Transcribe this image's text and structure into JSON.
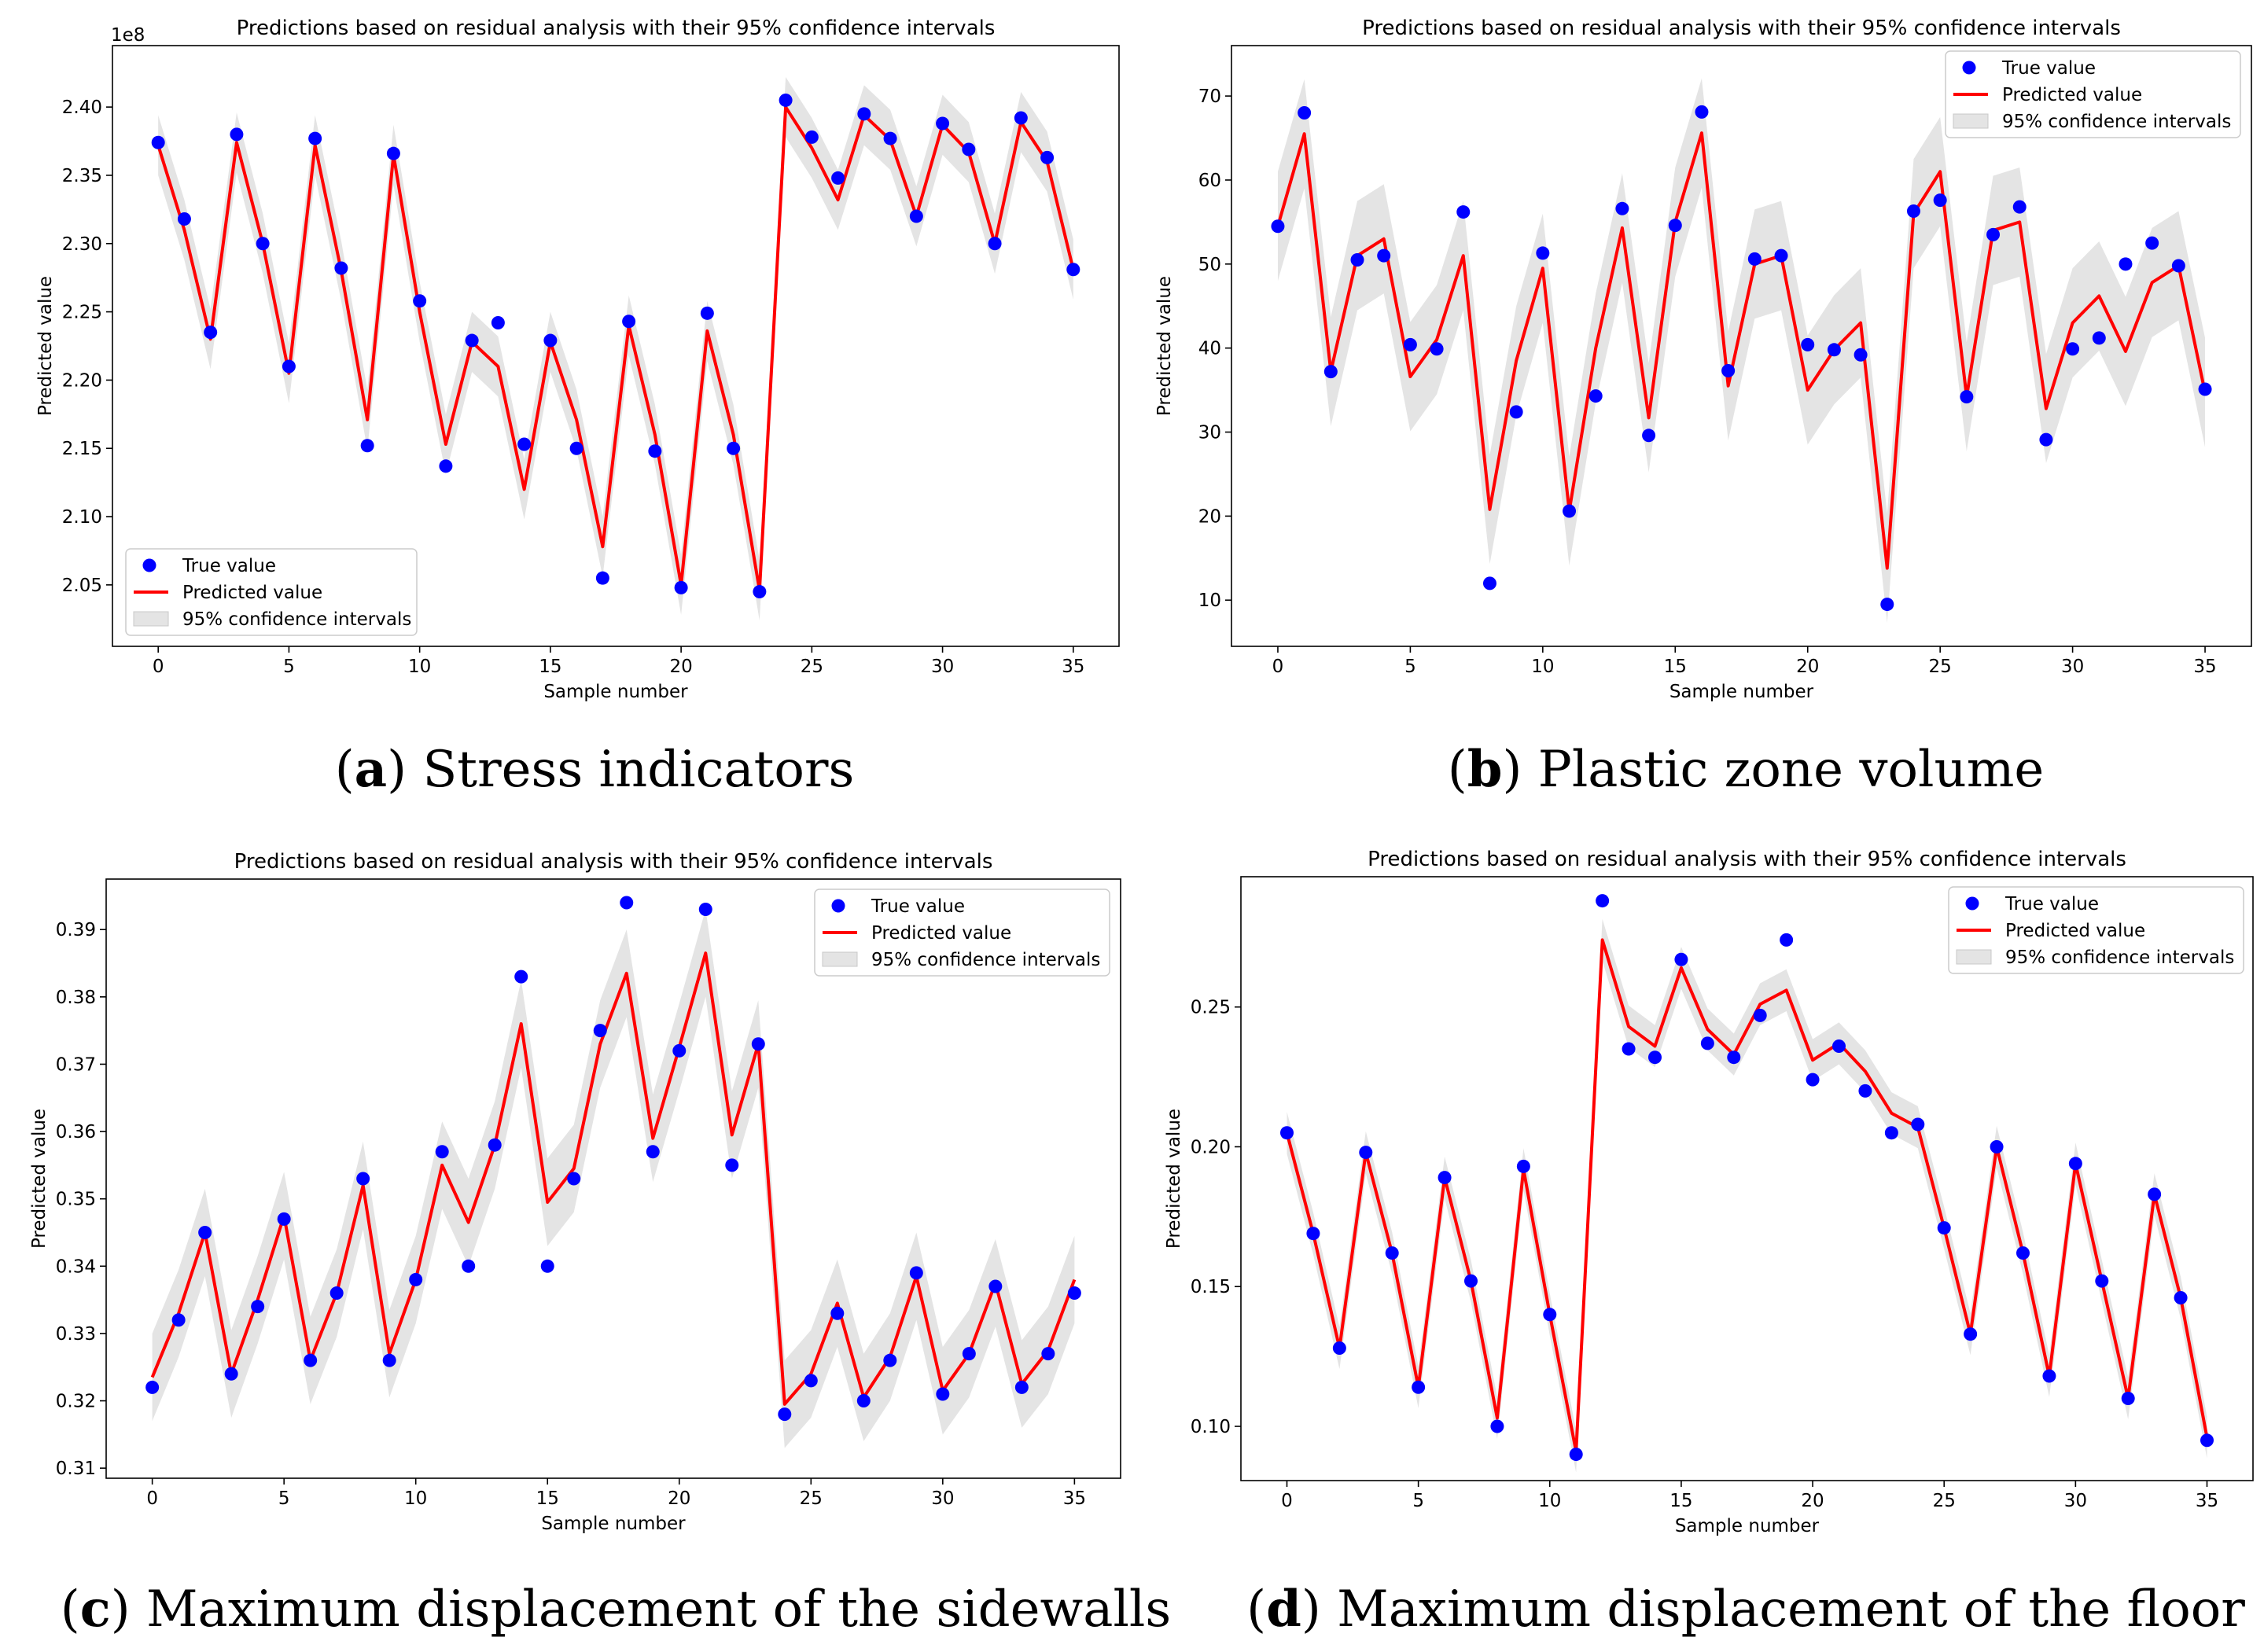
{
  "chart_data": [
    {
      "type": "line",
      "title": "Predictions based on residual analysis with their 95% confidence intervals",
      "xlabel": "Sample number",
      "ylabel": "Predicted value",
      "offset_text": "1e8",
      "caption_letter": "a",
      "caption_text": "Stress indicators",
      "legend": {
        "position": "lower-left",
        "true_label": "True value",
        "pred_label": "Predicted value",
        "ci_label": "95% confidence intervals"
      },
      "xlim": [
        -1.75,
        36.75
      ],
      "ylim": [
        2.005,
        2.445
      ],
      "xticks": [
        0,
        5,
        10,
        15,
        20,
        25,
        30,
        35
      ],
      "xtick_labels": [
        "0",
        "5",
        "10",
        "15",
        "20",
        "25",
        "30",
        "35"
      ],
      "yticks": [
        2.05,
        2.1,
        2.15,
        2.2,
        2.25,
        2.3,
        2.35,
        2.4
      ],
      "ytick_labels": [
        "2.05",
        "2.10",
        "2.15",
        "2.20",
        "2.25",
        "2.30",
        "2.35",
        "2.40"
      ],
      "true_values": [
        2.374,
        2.318,
        2.235,
        2.38,
        2.3,
        2.21,
        2.377,
        2.282,
        2.152,
        2.366,
        2.258,
        2.137,
        2.229,
        2.242,
        2.153,
        2.229,
        2.15,
        2.055,
        2.243,
        2.148,
        2.048,
        2.249,
        2.15,
        2.045,
        2.405,
        2.378,
        2.348,
        2.395,
        2.377,
        2.32,
        2.388,
        2.369,
        2.3,
        2.392,
        2.363,
        2.281
      ],
      "predicted": [
        2.372,
        2.31,
        2.23,
        2.374,
        2.3,
        2.205,
        2.372,
        2.28,
        2.171,
        2.365,
        2.25,
        2.153,
        2.228,
        2.21,
        2.12,
        2.228,
        2.171,
        2.078,
        2.24,
        2.16,
        2.05,
        2.236,
        2.16,
        2.046,
        2.4,
        2.37,
        2.332,
        2.394,
        2.376,
        2.32,
        2.387,
        2.367,
        2.3,
        2.389,
        2.36,
        2.281
      ],
      "ci_halfwidth": 0.022
    },
    {
      "type": "line",
      "title": "Predictions based on residual analysis with their 95% confidence intervals",
      "xlabel": "Sample number",
      "ylabel": "Predicted value",
      "caption_letter": "b",
      "caption_text": "Plastic zone volume",
      "legend": {
        "position": "top-right",
        "true_label": "True value",
        "pred_label": "Predicted value",
        "ci_label": "95% confidence intervals"
      },
      "xlim": [
        -1.75,
        36.75
      ],
      "ylim": [
        4.5,
        76
      ],
      "xticks": [
        0,
        5,
        10,
        15,
        20,
        25,
        30,
        35
      ],
      "xtick_labels": [
        "0",
        "5",
        "10",
        "15",
        "20",
        "25",
        "30",
        "35"
      ],
      "yticks": [
        10,
        20,
        30,
        40,
        50,
        60,
        70
      ],
      "ytick_labels": [
        "10",
        "20",
        "30",
        "40",
        "50",
        "60",
        "70"
      ],
      "true_values": [
        54.5,
        68,
        37.2,
        50.5,
        51,
        40.4,
        39.9,
        56.2,
        12,
        32.4,
        51.3,
        20.6,
        34.3,
        56.6,
        29.6,
        54.6,
        68.1,
        37.3,
        50.6,
        51,
        40.4,
        39.8,
        39.2,
        9.5,
        56.3,
        57.6,
        34.2,
        53.5,
        56.8,
        29.1,
        39.9,
        41.2,
        50,
        52.5,
        49.8,
        35.1
      ],
      "predicted": [
        54.5,
        65.5,
        37.2,
        51,
        53,
        36.6,
        41,
        51,
        20.8,
        38.5,
        49.5,
        20.6,
        40,
        54.3,
        31.7,
        55,
        65.6,
        35.5,
        50,
        51,
        35,
        39.8,
        43,
        13.8,
        56,
        61,
        34.2,
        54,
        55,
        32.8,
        43,
        46.2,
        39.6,
        47.8,
        49.8,
        34.7
      ],
      "ci_halfwidth": 6.5
    },
    {
      "type": "line",
      "title": "Predictions based on residual analysis with their 95% confidence intervals",
      "xlabel": "Sample number",
      "ylabel": "Predicted value",
      "caption_letter": "c",
      "caption_text": "Maximum displacement of the sidewalls",
      "legend": {
        "position": "top-right",
        "true_label": "True value",
        "pred_label": "Predicted value",
        "ci_label": "95% confidence intervals"
      },
      "xlim": [
        -1.75,
        36.75
      ],
      "ylim": [
        0.3085,
        0.3975
      ],
      "xticks": [
        0,
        5,
        10,
        15,
        20,
        25,
        30,
        35
      ],
      "xtick_labels": [
        "0",
        "5",
        "10",
        "15",
        "20",
        "25",
        "30",
        "35"
      ],
      "yticks": [
        0.31,
        0.32,
        0.33,
        0.34,
        0.35,
        0.36,
        0.37,
        0.38,
        0.39
      ],
      "ytick_labels": [
        "0.31",
        "0.32",
        "0.33",
        "0.34",
        "0.35",
        "0.36",
        "0.37",
        "0.38",
        "0.39"
      ],
      "true_values": [
        0.322,
        0.332,
        0.345,
        0.324,
        0.334,
        0.347,
        0.326,
        0.336,
        0.353,
        0.326,
        0.338,
        0.357,
        0.34,
        0.358,
        0.383,
        0.34,
        0.353,
        0.375,
        0.394,
        0.357,
        0.372,
        0.393,
        0.355,
        0.373,
        0.318,
        0.323,
        0.333,
        0.32,
        0.326,
        0.339,
        0.321,
        0.327,
        0.337,
        0.322,
        0.327,
        0.336
      ],
      "predicted": [
        0.3235,
        0.333,
        0.345,
        0.324,
        0.335,
        0.3475,
        0.326,
        0.336,
        0.352,
        0.327,
        0.338,
        0.355,
        0.3465,
        0.358,
        0.376,
        0.3495,
        0.3545,
        0.373,
        0.3835,
        0.359,
        0.3725,
        0.3865,
        0.3595,
        0.373,
        0.3195,
        0.324,
        0.3345,
        0.3205,
        0.3265,
        0.3385,
        0.3215,
        0.327,
        0.3375,
        0.3225,
        0.3275,
        0.338
      ],
      "ci_halfwidth": 0.0065
    },
    {
      "type": "line",
      "title": "Predictions based on residual analysis with their 95% confidence intervals",
      "xlabel": "Sample number",
      "ylabel": "Predicted value",
      "caption_letter": "d",
      "caption_text": "Maximum displacement of the floor",
      "legend": {
        "position": "top-right",
        "true_label": "True value",
        "pred_label": "Predicted value",
        "ci_label": "95% confidence intervals"
      },
      "xlim": [
        -1.75,
        36.75
      ],
      "ylim": [
        0.0806,
        0.2966
      ],
      "xticks": [
        0,
        5,
        10,
        15,
        20,
        25,
        30,
        35
      ],
      "xtick_labels": [
        "0",
        "5",
        "10",
        "15",
        "20",
        "25",
        "30",
        "35"
      ],
      "yticks": [
        0.1,
        0.15,
        0.2,
        0.25
      ],
      "ytick_labels": [
        "0.10",
        "0.15",
        "0.20",
        "0.25"
      ],
      "true_values": [
        0.205,
        0.169,
        0.128,
        0.198,
        0.162,
        0.114,
        0.189,
        0.152,
        0.1,
        0.193,
        0.14,
        0.09,
        0.288,
        0.235,
        0.232,
        0.267,
        0.237,
        0.232,
        0.247,
        0.274,
        0.224,
        0.236,
        0.22,
        0.205,
        0.208,
        0.171,
        0.133,
        0.2,
        0.162,
        0.118,
        0.194,
        0.152,
        0.11,
        0.183,
        0.146,
        0.095
      ],
      "predicted": [
        0.205,
        0.169,
        0.128,
        0.198,
        0.162,
        0.114,
        0.189,
        0.152,
        0.103,
        0.192,
        0.14,
        0.091,
        0.274,
        0.243,
        0.236,
        0.264,
        0.242,
        0.233,
        0.251,
        0.256,
        0.231,
        0.237,
        0.227,
        0.212,
        0.207,
        0.171,
        0.133,
        0.2,
        0.162,
        0.118,
        0.194,
        0.152,
        0.11,
        0.183,
        0.146,
        0.096
      ],
      "ci_halfwidth": 0.0075
    }
  ],
  "colors": {
    "true": "#0000ff",
    "predicted": "#ff0000",
    "ci": "#e4e4e4",
    "axis": "#000000"
  }
}
